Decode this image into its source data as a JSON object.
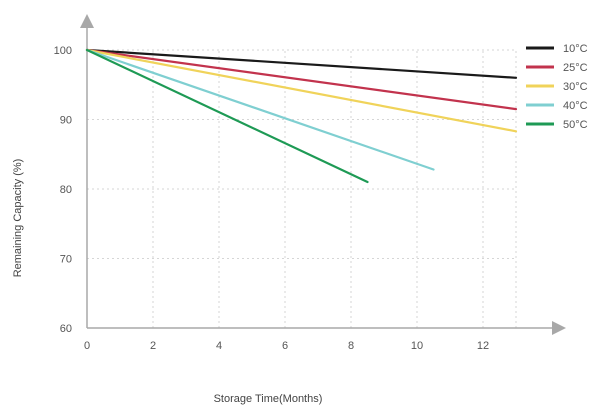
{
  "chart_data": {
    "type": "line",
    "xlabel": "Storage Time(Months)",
    "ylabel": "Remaining Capacity (%)",
    "xlim": [
      0,
      13
    ],
    "ylim": [
      60,
      100
    ],
    "x_ticks": [
      "0",
      "2",
      "4",
      "6",
      "8",
      "10",
      "12"
    ],
    "y_ticks": [
      "60",
      "70",
      "80",
      "90",
      "100"
    ],
    "grid": true,
    "legend_position": "top-right",
    "series": [
      {
        "name": "10°C",
        "color": "#1a1a1a",
        "x": [
          0,
          13
        ],
        "y": [
          100,
          96
        ]
      },
      {
        "name": "25°C",
        "color": "#c2334d",
        "x": [
          0,
          13
        ],
        "y": [
          100,
          91.5
        ]
      },
      {
        "name": "30°C",
        "color": "#f0d35a",
        "x": [
          0,
          13
        ],
        "y": [
          100,
          88.3
        ]
      },
      {
        "name": "40°C",
        "color": "#7fcfd1",
        "x": [
          0,
          10.5
        ],
        "y": [
          100,
          82.8
        ]
      },
      {
        "name": "50°C",
        "color": "#1e9a55",
        "x": [
          0,
          8.5
        ],
        "y": [
          100,
          81
        ]
      }
    ]
  }
}
